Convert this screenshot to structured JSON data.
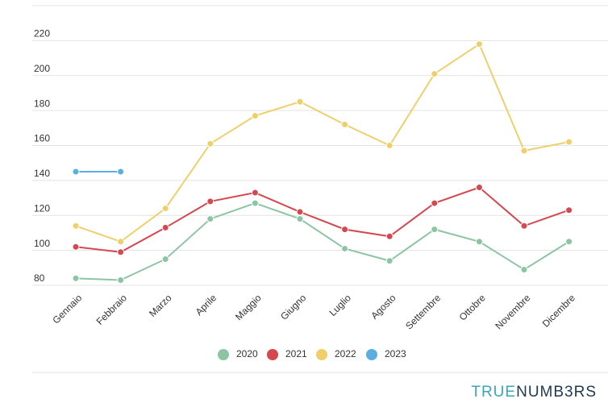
{
  "chart_data": {
    "type": "line",
    "categories": [
      "Gennaio",
      "Febbraio",
      "Marzo",
      "Aprile",
      "Maggio",
      "Giugno",
      "Luglio",
      "Agosto",
      "Settembre",
      "Ottobre",
      "Novembre",
      "Dicembre"
    ],
    "series": [
      {
        "name": "2020",
        "color": "#8cc5a4",
        "values": [
          84,
          83,
          95,
          118,
          127,
          118,
          101,
          94,
          112,
          105,
          89,
          105
        ]
      },
      {
        "name": "2021",
        "color": "#d6474f",
        "values": [
          102,
          99,
          113,
          128,
          133,
          122,
          112,
          108,
          127,
          136,
          114,
          123
        ]
      },
      {
        "name": "2022",
        "color": "#f0cf6b",
        "values": [
          114,
          105,
          124,
          161,
          177,
          185,
          172,
          160,
          201,
          218,
          157,
          162
        ]
      },
      {
        "name": "2023",
        "color": "#5aafe0",
        "values": [
          145,
          145,
          null,
          null,
          null,
          null,
          null,
          null,
          null,
          null,
          null,
          null
        ]
      }
    ],
    "ylim": [
      80,
      240
    ],
    "yticks": [
      80,
      100,
      120,
      140,
      160,
      180,
      200,
      220
    ],
    "grid": true,
    "brand": [
      "TRUE",
      "NUMB3RS"
    ]
  }
}
